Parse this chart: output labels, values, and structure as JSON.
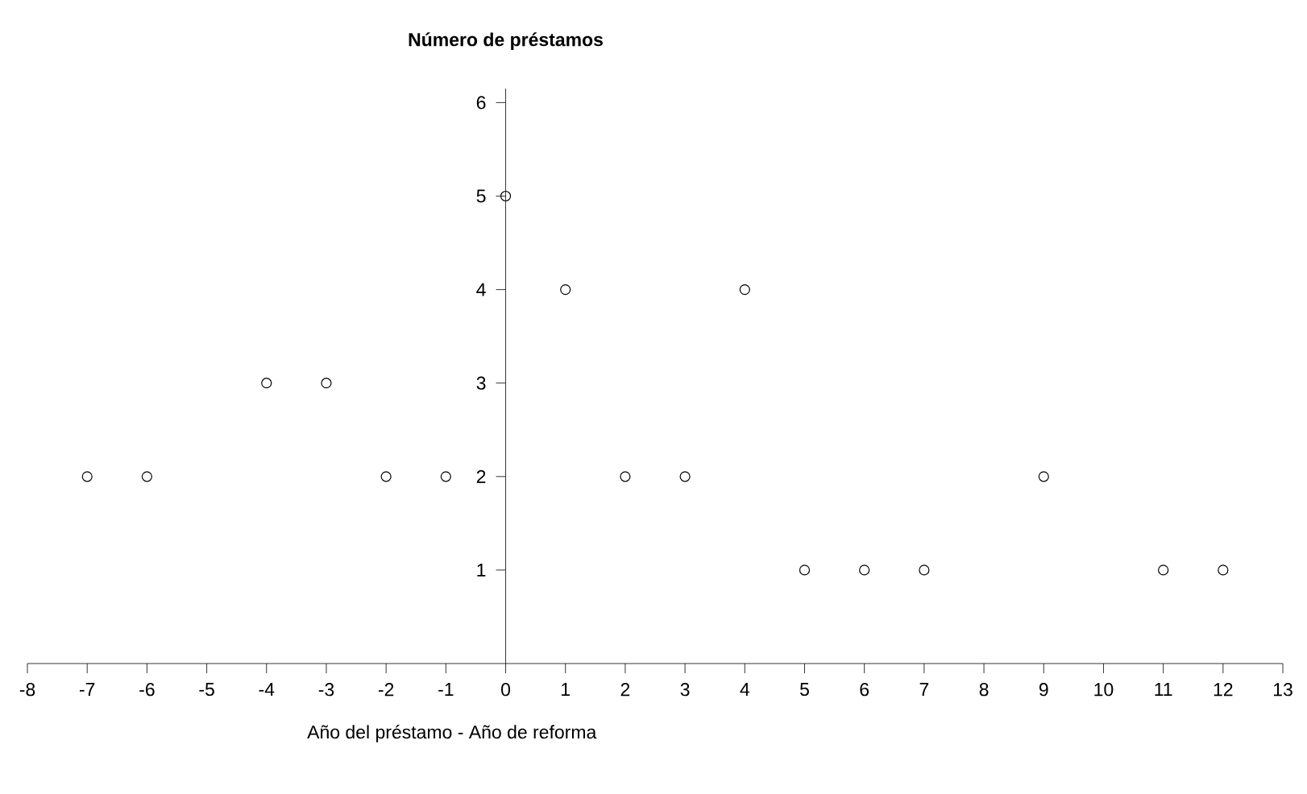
{
  "chart_data": {
    "type": "scatter",
    "ylabel": "Número de préstamos",
    "xlabel": "Año del préstamo - Año de reforma",
    "x": [
      -7,
      -6,
      -4,
      -3,
      -2,
      -1,
      0,
      1,
      2,
      3,
      4,
      5,
      6,
      7,
      9,
      11,
      12
    ],
    "values": [
      2,
      2,
      3,
      3,
      2,
      2,
      5,
      4,
      2,
      2,
      4,
      1,
      1,
      1,
      2,
      1,
      1
    ],
    "color": "#000000",
    "marker": "circle",
    "xlim": [
      -8,
      13
    ],
    "ylim": [
      0,
      6.15
    ],
    "xticks": [
      -8,
      -7,
      -6,
      -5,
      -4,
      -3,
      -2,
      -1,
      0,
      1,
      2,
      3,
      4,
      5,
      6,
      7,
      8,
      9,
      10,
      11,
      12,
      13
    ],
    "yticks": [
      1,
      2,
      3,
      4,
      5,
      6
    ],
    "grid": false
  }
}
